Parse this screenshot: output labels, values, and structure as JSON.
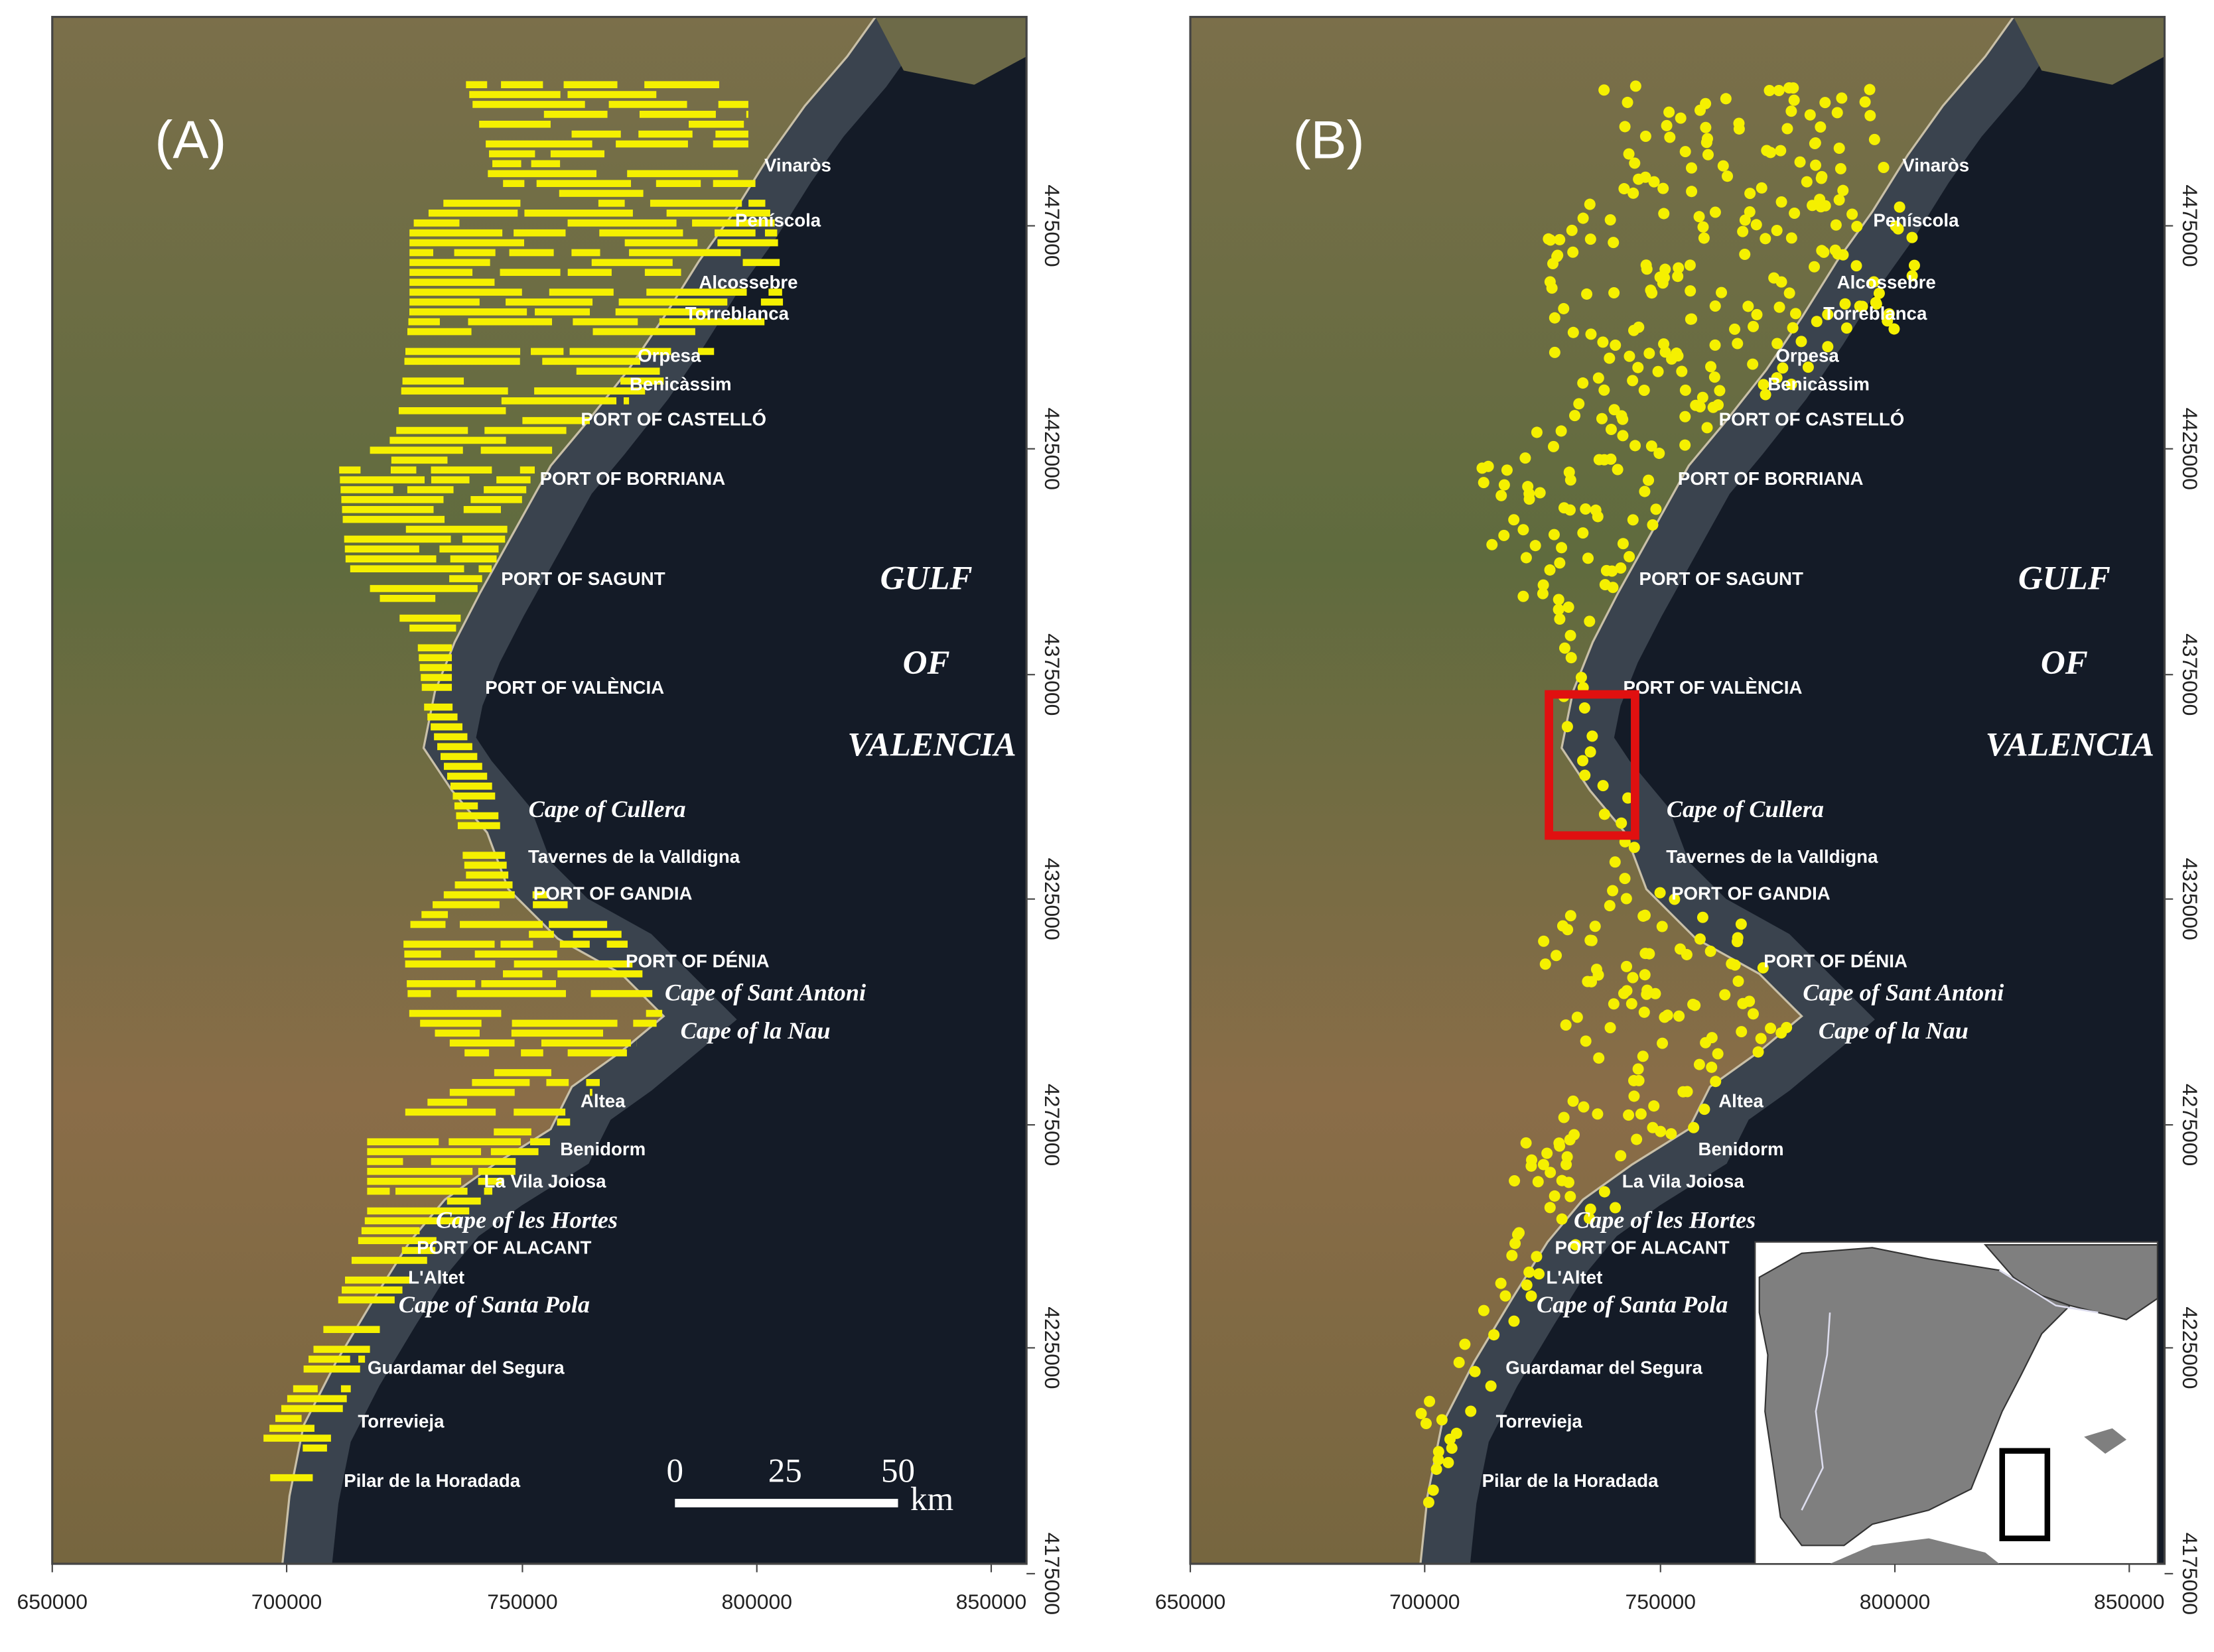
{
  "panels": [
    {
      "label": "(A)",
      "scale_bar": {
        "ticks": [
          0,
          25,
          50
        ],
        "unit": "km"
      }
    },
    {
      "label": "(B)"
    }
  ],
  "places": [
    "Vinaròs",
    "Peníscola",
    "Alcossebre",
    "Torreblanca",
    "Orpesa",
    "Benicàssim",
    "PORT OF CASTELLÓ",
    "PORT OF BORRIANA",
    "PORT OF SAGUNT",
    "PORT OF VALÈNCIA",
    "Cape of Cullera",
    "Tavernes de la Valldigna",
    "PORT OF GANDIA",
    "PORT OF DÉNIA",
    "Cape of Sant Antoni",
    "Cape of la Nau",
    "Altea",
    "Benidorm",
    "La Vila Joiosa",
    "Cape of les Hortes",
    "PORT OF ALACANT",
    "L'Altet",
    "Cape of Santa Pola",
    "Guardamar del Segura",
    "Torrevieja",
    "Pilar de la Horadada"
  ],
  "gulf": [
    "GULF",
    "OF",
    "VALENCIA"
  ],
  "x_ticks": [
    650000,
    700000,
    750000,
    800000,
    850000
  ],
  "y_ticks": [
    4475000,
    4425000,
    4375000,
    4325000,
    4275000,
    4225000,
    4175000
  ]
}
